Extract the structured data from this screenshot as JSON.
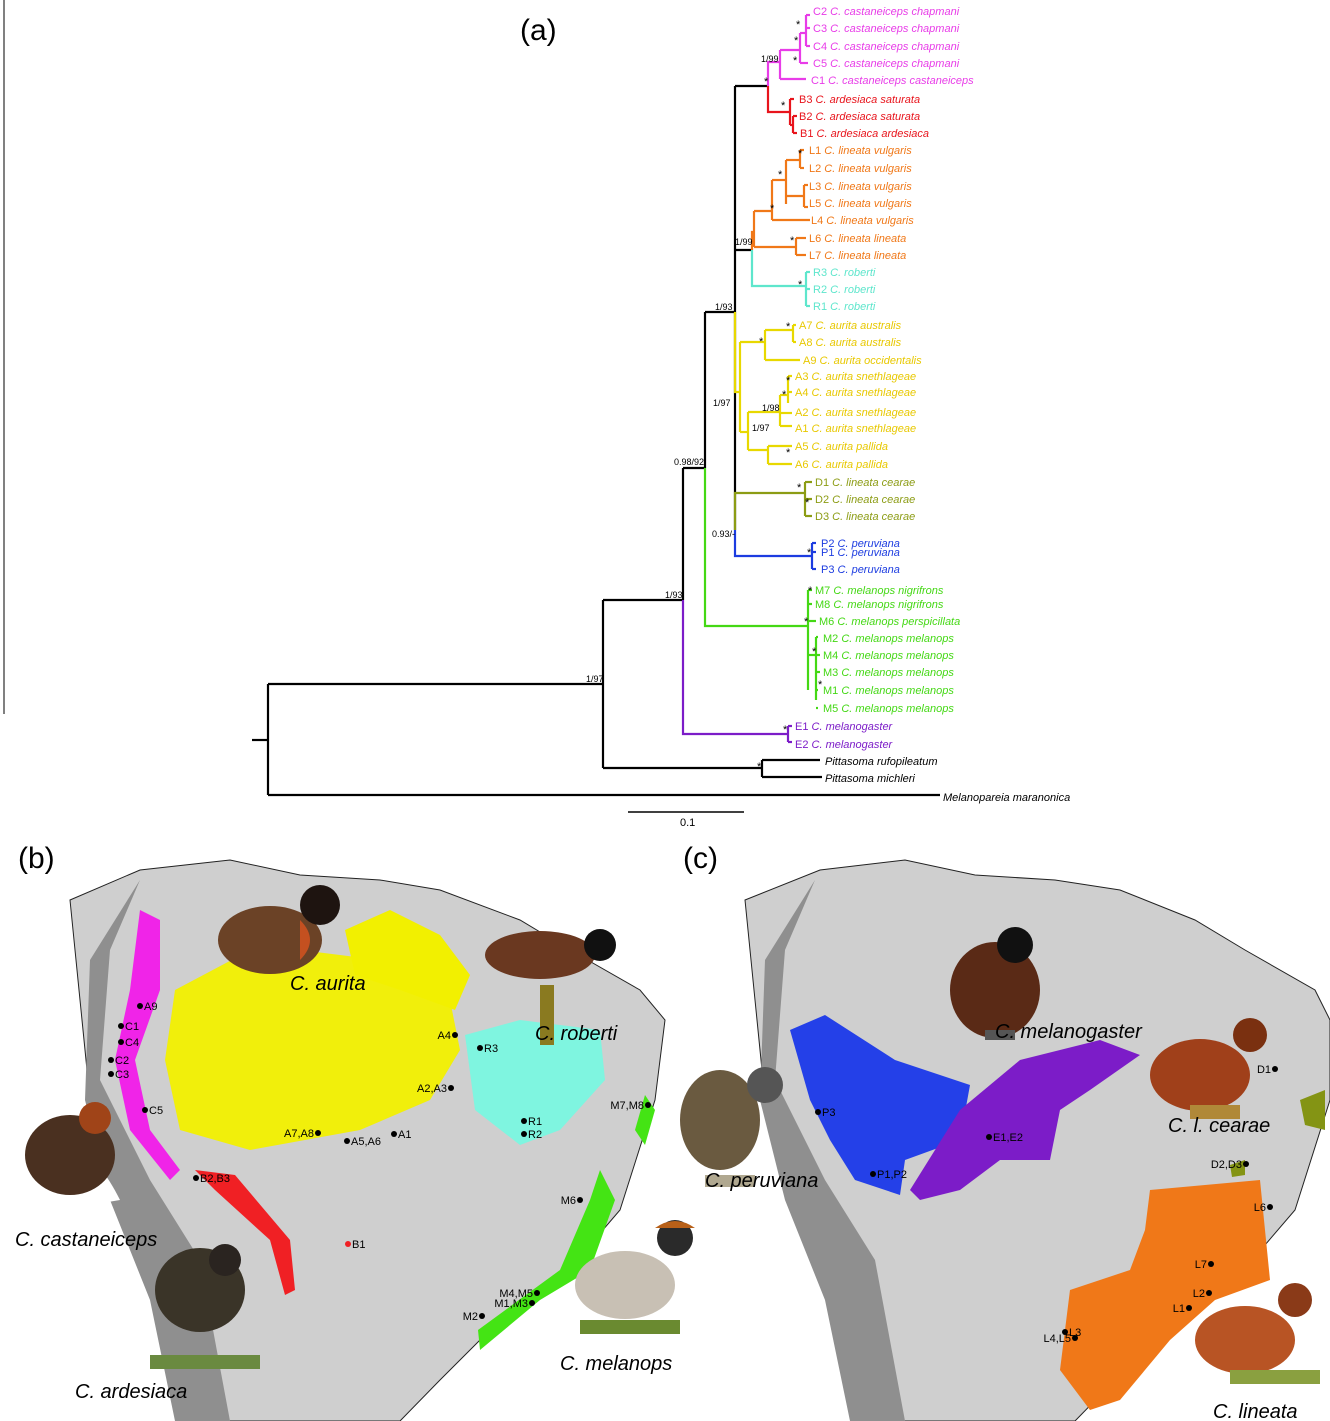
{
  "panels": {
    "a": "(a)",
    "b": "(b)",
    "c": "(c)"
  },
  "scale_bar": {
    "label": "0.1"
  },
  "tips": [
    {
      "code": "C2",
      "name": "C. castaneiceps chapmani",
      "color": "#e83ce8"
    },
    {
      "code": "C3",
      "name": "C. castaneiceps chapmani",
      "color": "#e83ce8"
    },
    {
      "code": "C4",
      "name": "C. castaneiceps chapmani",
      "color": "#e83ce8"
    },
    {
      "code": "C5",
      "name": "C. castaneiceps chapmani",
      "color": "#e83ce8"
    },
    {
      "code": "C1",
      "name": "C. castaneiceps castaneiceps",
      "color": "#e83ce8"
    },
    {
      "code": "B3",
      "name": "C. ardesiaca saturata",
      "color": "#e8141c"
    },
    {
      "code": "B2",
      "name": "C. ardesiaca saturata",
      "color": "#e8141c"
    },
    {
      "code": "B1",
      "name": "C. ardesiaca ardesiaca",
      "color": "#e8141c"
    },
    {
      "code": "L1",
      "name": "C. lineata vulgaris",
      "color": "#f07818"
    },
    {
      "code": "L2",
      "name": "C. lineata vulgaris",
      "color": "#f07818"
    },
    {
      "code": "L3",
      "name": "C. lineata vulgaris",
      "color": "#f07818"
    },
    {
      "code": "L5",
      "name": "C. lineata vulgaris",
      "color": "#f07818"
    },
    {
      "code": "L4",
      "name": "C. lineata vulgaris",
      "color": "#f07818"
    },
    {
      "code": "L6",
      "name": "C. lineata lineata",
      "color": "#f07818"
    },
    {
      "code": "L7",
      "name": "C. lineata lineata",
      "color": "#f07818"
    },
    {
      "code": "R3",
      "name": "C. roberti",
      "color": "#5ee6cc"
    },
    {
      "code": "R2",
      "name": "C. roberti",
      "color": "#5ee6cc"
    },
    {
      "code": "R1",
      "name": "C. roberti",
      "color": "#5ee6cc"
    },
    {
      "code": "A7",
      "name": "C. aurita australis",
      "color": "#e8c800"
    },
    {
      "code": "A8",
      "name": "C. aurita australis",
      "color": "#e8c800"
    },
    {
      "code": "A9",
      "name": "C. aurita occidentalis",
      "color": "#e8c800"
    },
    {
      "code": "A3",
      "name": "C. aurita snethlageae",
      "color": "#e8c800"
    },
    {
      "code": "A4",
      "name": "C. aurita snethlageae",
      "color": "#e8c800"
    },
    {
      "code": "A2",
      "name": "C. aurita snethlageae",
      "color": "#e8c800"
    },
    {
      "code": "A1",
      "name": "C. aurita snethlageae",
      "color": "#e8c800"
    },
    {
      "code": "A5",
      "name": "C. aurita pallida",
      "color": "#e8c800"
    },
    {
      "code": "A6",
      "name": "C. aurita pallida",
      "color": "#e8c800"
    },
    {
      "code": "D1",
      "name": "C. lineata cearae",
      "color": "#8c9c14"
    },
    {
      "code": "D2",
      "name": "C. lineata cearae",
      "color": "#8c9c14"
    },
    {
      "code": "D3",
      "name": "C. lineata cearae",
      "color": "#8c9c14"
    },
    {
      "code": "P2",
      "name": "C. peruviana",
      "color": "#1c3ce0"
    },
    {
      "code": "P1",
      "name": "C. peruviana",
      "color": "#1c3ce0"
    },
    {
      "code": "P3",
      "name": "C. peruviana",
      "color": "#1c3ce0"
    },
    {
      "code": "M7",
      "name": "C. melanops nigrifrons",
      "color": "#44d814"
    },
    {
      "code": "M8",
      "name": "C. melanops nigrifrons",
      "color": "#44d814"
    },
    {
      "code": "M6",
      "name": "C. melanops perspicillata",
      "color": "#44d814"
    },
    {
      "code": "M2",
      "name": "C. melanops melanops",
      "color": "#44d814"
    },
    {
      "code": "M4",
      "name": "C. melanops melanops",
      "color": "#44d814"
    },
    {
      "code": "M3",
      "name": "C. melanops melanops",
      "color": "#44d814"
    },
    {
      "code": "M1",
      "name": "C. melanops melanops",
      "color": "#44d814"
    },
    {
      "code": "M5",
      "name": "C. melanops melanops",
      "color": "#44d814"
    },
    {
      "code": "E1",
      "name": "C. melanogaster",
      "color": "#7c1cc8"
    },
    {
      "code": "E2",
      "name": "C. melanogaster",
      "color": "#7c1cc8"
    },
    {
      "code": "",
      "name": "Pittasoma rufopileatum",
      "color": "#000000"
    },
    {
      "code": "",
      "name": "Pittasoma michleri",
      "color": "#000000"
    },
    {
      "code": "",
      "name": "Melanopareia maranonica",
      "color": "#000000"
    }
  ],
  "supports": [
    {
      "label": "1/99"
    },
    {
      "label": "1/99"
    },
    {
      "label": "1/93"
    },
    {
      "label": "1/97"
    },
    {
      "label": "1/98"
    },
    {
      "label": "1/97"
    },
    {
      "label": "0.98/92"
    },
    {
      "label": "0.93/-"
    },
    {
      "label": "1/93"
    },
    {
      "label": "1/97"
    }
  ],
  "map_b": {
    "species_labels": [
      "C. aurita",
      "C. roberti",
      "C. castaneiceps",
      "C. ardesiaca",
      "C. melanops"
    ],
    "localities": [
      "A9",
      "C1",
      "C4",
      "C2",
      "C3",
      "C5",
      "A4",
      "R3",
      "A2,A3",
      "R1",
      "R2",
      "A7,A8",
      "A5,A6",
      "A1",
      "M7,M8",
      "B2,B3",
      "B1",
      "M6",
      "M4,M5",
      "M1,M3",
      "M2"
    ]
  },
  "map_c": {
    "species_labels": [
      "C. melanogaster",
      "C. l. cearae",
      "C. peruviana",
      "C. lineata"
    ],
    "localities": [
      "P3",
      "P1,P2",
      "E1,E2",
      "D1",
      "D2,D3",
      "L6",
      "L7",
      "L2",
      "L1",
      "L4,L5",
      "L3"
    ]
  },
  "colors": {
    "magenta": "#e83ce8",
    "red": "#e8141c",
    "orange": "#f07818",
    "cyan": "#7ff5e0",
    "yellow": "#f2f000",
    "olive": "#8c9c14",
    "blue": "#2440e8",
    "green": "#44e414",
    "purple": "#7c1cc8",
    "land": "#c8c8c8",
    "mountain": "#8a8a8a"
  }
}
